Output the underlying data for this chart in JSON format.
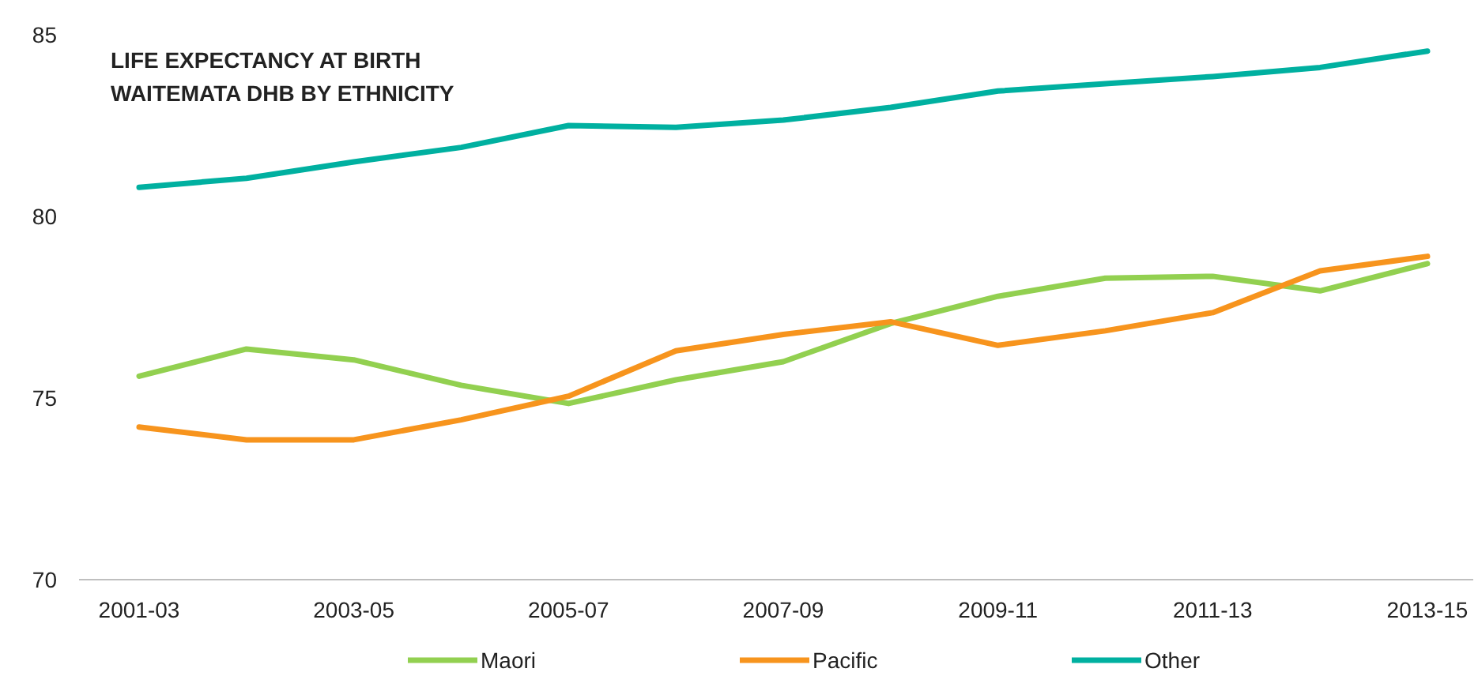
{
  "chart_data": {
    "type": "line",
    "title": "LIFE EXPECTANCY AT BIRTH",
    "subtitle": "WAITEMATA DHB BY ETHNICITY",
    "categories": [
      "2001-03",
      null,
      "2003-05",
      null,
      "2005-07",
      null,
      "2007-09",
      null,
      "2009-11",
      null,
      "2011-13",
      null,
      "2013-15"
    ],
    "series": [
      {
        "name": "Maori",
        "color": "#92d050",
        "values": [
          75.6,
          76.35,
          76.05,
          75.35,
          74.85,
          75.5,
          76.0,
          77.05,
          77.8,
          78.3,
          78.35,
          77.95,
          78.7
        ]
      },
      {
        "name": "Pacific",
        "color": "#f7941d",
        "values": [
          74.2,
          73.85,
          73.85,
          74.4,
          75.05,
          76.3,
          76.75,
          77.1,
          76.45,
          76.85,
          77.35,
          78.5,
          78.9
        ]
      },
      {
        "name": "Other",
        "color": "#00b0a0",
        "values": [
          80.8,
          81.05,
          81.5,
          81.9,
          82.5,
          82.45,
          82.65,
          83.0,
          83.45,
          83.65,
          83.85,
          84.1,
          84.55
        ]
      }
    ],
    "ylim": [
      70,
      85
    ],
    "yticks": [
      70,
      75,
      80,
      85
    ],
    "grid": false,
    "legend": "bottom",
    "marker": "none",
    "line_style": "solid"
  }
}
